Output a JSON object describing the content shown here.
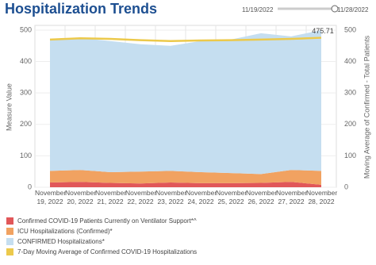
{
  "chart_data": {
    "type": "area",
    "title": "Hospitalization Trends",
    "filter": {
      "start": "11/19/2022",
      "end": "11/28/2022"
    },
    "categories": [
      "November 19, 2022",
      "November 20, 2022",
      "November 21, 2022",
      "November 22, 2022",
      "November 23, 2022",
      "November 24, 2022",
      "November 25, 2022",
      "November 26, 2022",
      "November 27, 2022",
      "November 28, 2022"
    ],
    "series": [
      {
        "name": "Confirmed COVID-19 Patients Currently on Ventilator Support*^",
        "color": "#e15759",
        "values": [
          15,
          17,
          14,
          12,
          15,
          13,
          13,
          14,
          17,
          8
        ]
      },
      {
        "name": "ICU Hospitalizations (Confirmed)*",
        "color": "#f1a261",
        "values": [
          37,
          38,
          34,
          38,
          37,
          35,
          32,
          28,
          38,
          44
        ]
      },
      {
        "name": "CONFIRMED Hospitalizations*",
        "color": "#c5def0",
        "values": [
          418,
          420,
          417,
          405,
          398,
          417,
          425,
          448,
          425,
          448
        ]
      },
      {
        "name": "7-Day Moving Average of Confirmed COVID-19 Hospitalizations",
        "color": "#ecc94b",
        "axis": "y2",
        "type": "line",
        "values": [
          470,
          474,
          472,
          468,
          465,
          467,
          468,
          470,
          472,
          475.71
        ]
      }
    ],
    "ylabel": "Measure Value",
    "y2label": "Moving Average of Confirmed - Total Patients",
    "ylim": [
      0,
      515
    ],
    "yticks": [
      0,
      100,
      200,
      300,
      400,
      500
    ],
    "y2lim": [
      0,
      515
    ],
    "y2ticks": [
      0,
      100,
      200,
      300,
      400,
      500
    ],
    "grid": true,
    "legend": "bottom"
  }
}
